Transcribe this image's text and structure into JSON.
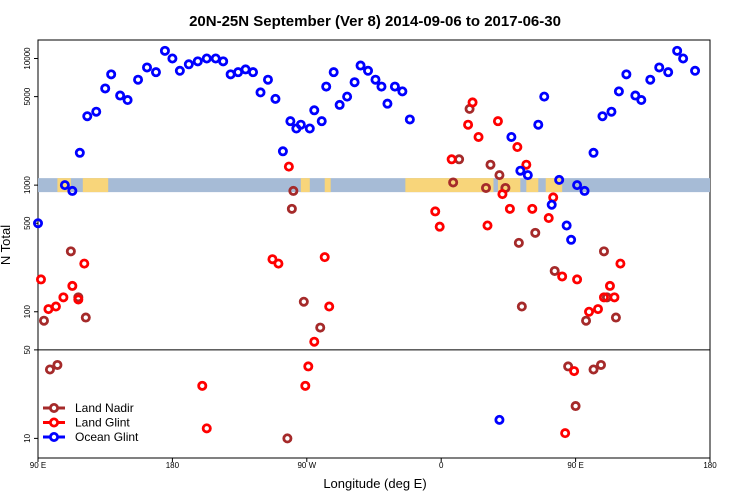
{
  "chart_data": {
    "type": "scatter",
    "title": "20N-25N September (Ver 8)   2014-09-06 to 2017-06-30",
    "xlabel": "Longitude (deg E)",
    "ylabel": "N Total",
    "x_ticks": [
      {
        "lon": 90,
        "label": "90 E"
      },
      {
        "lon": 180,
        "label": "180"
      },
      {
        "lon": 270,
        "label": "90 W"
      },
      {
        "lon": 360,
        "label": "0"
      },
      {
        "lon": 450,
        "label": "90 E"
      },
      {
        "lon": 540,
        "label": "180"
      }
    ],
    "xlim": [
      90,
      540
    ],
    "y_ticks": [
      10,
      50,
      100,
      500,
      1000,
      5000,
      10000
    ],
    "ylim": [
      7,
      14000
    ],
    "reference_line": 50,
    "map_band_value": 1000,
    "colors": {
      "land_nadir": "#a52a2a",
      "land_glint": "#ff0000",
      "ocean_glint": "#0000ff",
      "band_ocean": "#a6bbd6",
      "band_land": "#f8d57a"
    },
    "legend": [
      {
        "name": "Land Nadir",
        "key": "land_nadir"
      },
      {
        "name": "Land Glint",
        "key": "land_glint"
      },
      {
        "name": "Ocean Glint",
        "key": "ocean_glint"
      }
    ],
    "series": [
      {
        "name": "Land Nadir",
        "key": "land_nadir",
        "points": [
          [
            94,
            85
          ],
          [
            98,
            35
          ],
          [
            103,
            38
          ],
          [
            112,
            300
          ],
          [
            117,
            130
          ],
          [
            122,
            90
          ],
          [
            257,
            10
          ],
          [
            261,
            900
          ],
          [
            260,
            650
          ],
          [
            268,
            120
          ],
          [
            279,
            75
          ],
          [
            368,
            1050
          ],
          [
            372,
            1600
          ],
          [
            379,
            4000
          ],
          [
            390,
            950
          ],
          [
            393,
            1450
          ],
          [
            399,
            1200
          ],
          [
            403,
            950
          ],
          [
            412,
            350
          ],
          [
            414,
            110
          ],
          [
            423,
            420
          ],
          [
            436,
            210
          ],
          [
            445,
            37
          ],
          [
            450,
            18
          ],
          [
            457,
            85
          ],
          [
            462,
            35
          ],
          [
            467,
            38
          ],
          [
            469,
            300
          ],
          [
            471,
            130
          ],
          [
            477,
            90
          ]
        ]
      },
      {
        "name": "Land Glint",
        "key": "land_glint",
        "points": [
          [
            92,
            180
          ],
          [
            97,
            105
          ],
          [
            102,
            110
          ],
          [
            107,
            130
          ],
          [
            113,
            160
          ],
          [
            117,
            125
          ],
          [
            121,
            240
          ],
          [
            200,
            26
          ],
          [
            203,
            12
          ],
          [
            247,
            260
          ],
          [
            251,
            240
          ],
          [
            258,
            1400
          ],
          [
            269,
            26
          ],
          [
            271,
            37
          ],
          [
            275,
            58
          ],
          [
            282,
            270
          ],
          [
            285,
            110
          ],
          [
            356,
            620
          ],
          [
            359,
            470
          ],
          [
            367,
            1600
          ],
          [
            378,
            3000
          ],
          [
            381,
            4500
          ],
          [
            385,
            2400
          ],
          [
            391,
            480
          ],
          [
            398,
            3200
          ],
          [
            401,
            850
          ],
          [
            406,
            650
          ],
          [
            411,
            2000
          ],
          [
            417,
            1450
          ],
          [
            421,
            650
          ],
          [
            432,
            550
          ],
          [
            435,
            800
          ],
          [
            441,
            190
          ],
          [
            443,
            11
          ],
          [
            449,
            34
          ],
          [
            451,
            180
          ],
          [
            459,
            100
          ],
          [
            465,
            105
          ],
          [
            469,
            130
          ],
          [
            473,
            160
          ],
          [
            476,
            130
          ],
          [
            480,
            240
          ]
        ]
      },
      {
        "name": "Ocean Glint",
        "key": "ocean_glint",
        "points": [
          [
            90,
            500
          ],
          [
            108,
            1000
          ],
          [
            113,
            900
          ],
          [
            118,
            1800
          ],
          [
            123,
            3500
          ],
          [
            129,
            3800
          ],
          [
            135,
            5800
          ],
          [
            139,
            7500
          ],
          [
            145,
            5100
          ],
          [
            150,
            4700
          ],
          [
            157,
            6800
          ],
          [
            163,
            8500
          ],
          [
            169,
            7800
          ],
          [
            175,
            11500
          ],
          [
            180,
            10000
          ],
          [
            185,
            8000
          ],
          [
            191,
            9000
          ],
          [
            197,
            9500
          ],
          [
            203,
            10000
          ],
          [
            209,
            10000
          ],
          [
            214,
            9500
          ],
          [
            219,
            7500
          ],
          [
            224,
            7800
          ],
          [
            229,
            8200
          ],
          [
            234,
            7800
          ],
          [
            239,
            5400
          ],
          [
            244,
            6800
          ],
          [
            249,
            4800
          ],
          [
            254,
            1850
          ],
          [
            259,
            3200
          ],
          [
            263,
            2800
          ],
          [
            266,
            3000
          ],
          [
            272,
            2800
          ],
          [
            275,
            3900
          ],
          [
            280,
            3200
          ],
          [
            283,
            6000
          ],
          [
            288,
            7800
          ],
          [
            292,
            4300
          ],
          [
            297,
            5000
          ],
          [
            302,
            6500
          ],
          [
            306,
            8800
          ],
          [
            311,
            8000
          ],
          [
            316,
            6800
          ],
          [
            320,
            6000
          ],
          [
            324,
            4400
          ],
          [
            329,
            6000
          ],
          [
            334,
            5500
          ],
          [
            339,
            3300
          ],
          [
            399,
            14
          ],
          [
            407,
            2400
          ],
          [
            413,
            1300
          ],
          [
            418,
            1200
          ],
          [
            425,
            3000
          ],
          [
            429,
            5000
          ],
          [
            434,
            700
          ],
          [
            439,
            1100
          ],
          [
            444,
            480
          ],
          [
            447,
            370
          ],
          [
            451,
            1000
          ],
          [
            456,
            900
          ],
          [
            462,
            1800
          ],
          [
            468,
            3500
          ],
          [
            474,
            3800
          ],
          [
            479,
            5500
          ],
          [
            484,
            7500
          ],
          [
            490,
            5100
          ],
          [
            494,
            4700
          ],
          [
            500,
            6800
          ],
          [
            506,
            8500
          ],
          [
            512,
            7800
          ],
          [
            518,
            11500
          ],
          [
            522,
            10000
          ],
          [
            530,
            8000
          ]
        ]
      }
    ]
  }
}
